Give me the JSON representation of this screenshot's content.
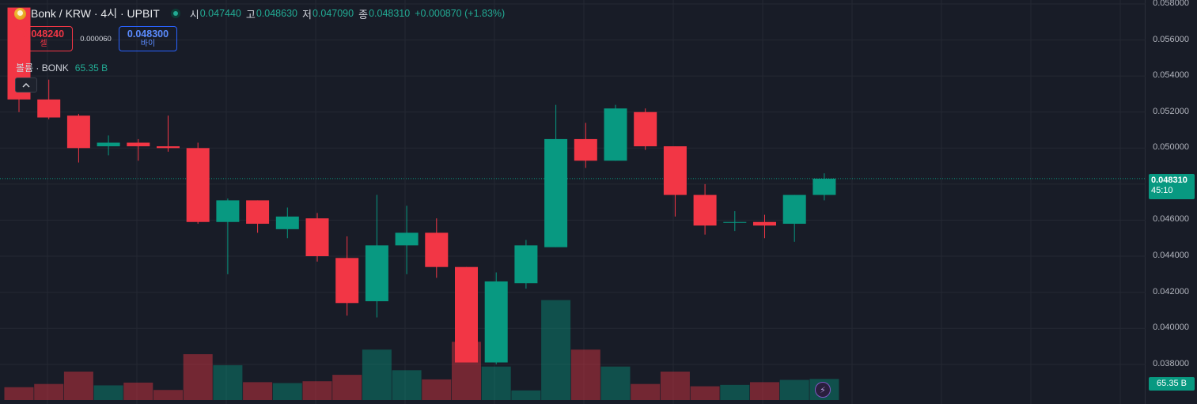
{
  "header": {
    "symbol_title": "Bonk / KRW · 4시 · UPBIT",
    "ohlc": [
      {
        "label": "시",
        "value": "0.047440"
      },
      {
        "label": "고",
        "value": "0.048630"
      },
      {
        "label": "저",
        "value": "0.047090"
      },
      {
        "label": "종",
        "value": "0.048310"
      }
    ],
    "change": "+0.000870 (+1.83%)"
  },
  "trade": {
    "sell_price": "0.048240",
    "sell_label": "셀",
    "spread": "0.000060",
    "buy_price": "0.048300",
    "buy_label": "바이"
  },
  "volume_indicator": {
    "name": "볼륨 · BONK",
    "value": "65.35 B"
  },
  "collapse_icon": "chevron-up-icon",
  "price_axis": {
    "ticks": [
      "0.058000",
      "0.056000",
      "0.054000",
      "0.052000",
      "0.050000",
      "0.048000",
      "0.046000",
      "0.044000",
      "0.042000",
      "0.040000",
      "0.038000"
    ],
    "current_price": "0.048310",
    "countdown": "45:10",
    "volume_label": "65.35 B"
  },
  "colors": {
    "up": "#089981",
    "down": "#f23645",
    "background": "#181c27",
    "grid": "#242833",
    "buy": "#2962ff"
  },
  "chart_data": {
    "type": "candlestick",
    "ylim": [
      0.0372,
      0.058
    ],
    "candles": [
      {
        "o": 0.0578,
        "h": 0.0578,
        "l": 0.052,
        "c": 0.0527
      },
      {
        "o": 0.0527,
        "h": 0.0538,
        "l": 0.0516,
        "c": 0.0517
      },
      {
        "o": 0.0518,
        "h": 0.0519,
        "l": 0.0492,
        "c": 0.05
      },
      {
        "o": 0.0501,
        "h": 0.0507,
        "l": 0.0496,
        "c": 0.0503
      },
      {
        "o": 0.0503,
        "h": 0.0505,
        "l": 0.0493,
        "c": 0.0501
      },
      {
        "o": 0.0501,
        "h": 0.0518,
        "l": 0.0498,
        "c": 0.05
      },
      {
        "o": 0.05,
        "h": 0.0503,
        "l": 0.0458,
        "c": 0.0459
      },
      {
        "o": 0.0459,
        "h": 0.0472,
        "l": 0.043,
        "c": 0.0471
      },
      {
        "o": 0.0471,
        "h": 0.0471,
        "l": 0.0453,
        "c": 0.0458
      },
      {
        "o": 0.0455,
        "h": 0.0467,
        "l": 0.045,
        "c": 0.0462
      },
      {
        "o": 0.0461,
        "h": 0.0464,
        "l": 0.0437,
        "c": 0.044
      },
      {
        "o": 0.0439,
        "h": 0.0451,
        "l": 0.0407,
        "c": 0.0414
      },
      {
        "o": 0.0415,
        "h": 0.0474,
        "l": 0.0406,
        "c": 0.0446
      },
      {
        "o": 0.0446,
        "h": 0.0468,
        "l": 0.043,
        "c": 0.0453
      },
      {
        "o": 0.0453,
        "h": 0.0461,
        "l": 0.0428,
        "c": 0.0434
      },
      {
        "o": 0.0434,
        "h": 0.0434,
        "l": 0.0381,
        "c": 0.0381
      },
      {
        "o": 0.0381,
        "h": 0.0431,
        "l": 0.038,
        "c": 0.0426
      },
      {
        "o": 0.0425,
        "h": 0.0449,
        "l": 0.0422,
        "c": 0.0446
      },
      {
        "o": 0.0445,
        "h": 0.0524,
        "l": 0.0445,
        "c": 0.0505
      },
      {
        "o": 0.0505,
        "h": 0.0514,
        "l": 0.0489,
        "c": 0.0493
      },
      {
        "o": 0.0493,
        "h": 0.0524,
        "l": 0.0493,
        "c": 0.0522
      },
      {
        "o": 0.052,
        "h": 0.0522,
        "l": 0.0499,
        "c": 0.0501
      },
      {
        "o": 0.0501,
        "h": 0.0501,
        "l": 0.0462,
        "c": 0.0474
      },
      {
        "o": 0.0474,
        "h": 0.048,
        "l": 0.0452,
        "c": 0.0457
      },
      {
        "o": 0.0459,
        "h": 0.0465,
        "l": 0.0454,
        "c": 0.0459
      },
      {
        "o": 0.0459,
        "h": 0.0463,
        "l": 0.045,
        "c": 0.0457
      },
      {
        "o": 0.0458,
        "h": 0.0474,
        "l": 0.0448,
        "c": 0.0474
      },
      {
        "o": 0.0474,
        "h": 0.0486,
        "l": 0.0471,
        "c": 0.0483
      }
    ],
    "volume": [
      0.28,
      0.35,
      0.62,
      0.32,
      0.38,
      0.22,
      1.0,
      0.76,
      0.39,
      0.37,
      0.41,
      0.55,
      1.1,
      0.65,
      0.45,
      1.27,
      0.73,
      0.21,
      2.18,
      1.1,
      0.73,
      0.35,
      0.62,
      0.3,
      0.33,
      0.39,
      0.44,
      0.46
    ]
  }
}
